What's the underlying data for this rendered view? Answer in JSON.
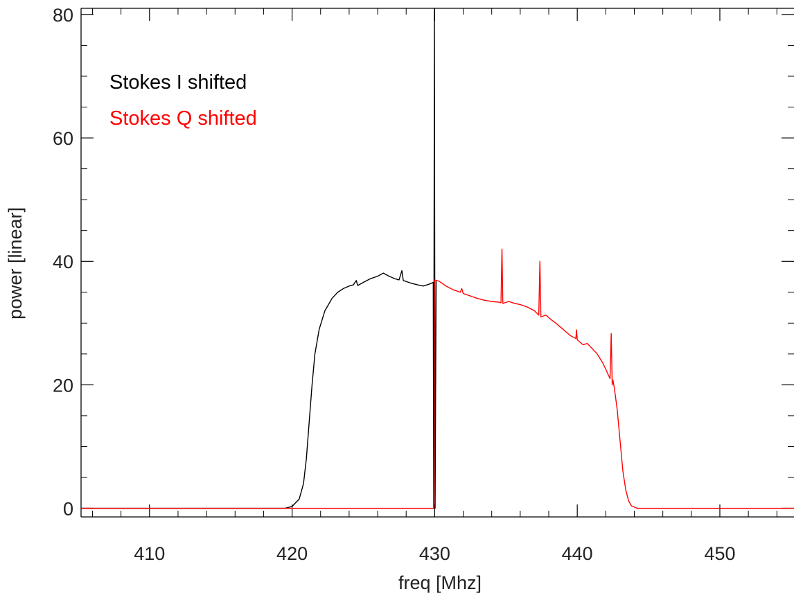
{
  "chart_data": {
    "type": "line",
    "title": "",
    "xlabel": "freq [Mhz]",
    "ylabel": "power [linear]",
    "xlim": [
      405.2,
      455.2
    ],
    "ylim": [
      -1.4,
      81.0
    ],
    "xticks": [
      "410",
      "420",
      "430",
      "440",
      "450"
    ],
    "yticks": [
      "0",
      "20",
      "40",
      "60",
      "80"
    ],
    "grid": false,
    "legend_position": "top-left",
    "series": [
      {
        "name": "Stokes I shifted",
        "color": "#000000",
        "points": [
          [
            405.2,
            0.0
          ],
          [
            419.5,
            0.0
          ],
          [
            420.0,
            0.3
          ],
          [
            420.5,
            1.5
          ],
          [
            420.8,
            4.0
          ],
          [
            421.0,
            8.0
          ],
          [
            421.2,
            14.0
          ],
          [
            421.4,
            20.0
          ],
          [
            421.6,
            25.0
          ],
          [
            421.9,
            29.0
          ],
          [
            422.3,
            32.0
          ],
          [
            422.8,
            34.0
          ],
          [
            423.2,
            35.0
          ],
          [
            423.6,
            35.6
          ],
          [
            424.0,
            36.0
          ],
          [
            424.3,
            36.2
          ],
          [
            424.5,
            36.9
          ],
          [
            424.6,
            36.1
          ],
          [
            425.0,
            36.6
          ],
          [
            425.5,
            37.2
          ],
          [
            426.0,
            37.6
          ],
          [
            426.4,
            38.1
          ],
          [
            426.8,
            37.6
          ],
          [
            427.2,
            37.2
          ],
          [
            427.5,
            37.0
          ],
          [
            427.7,
            38.5
          ],
          [
            427.8,
            36.9
          ],
          [
            428.3,
            36.5
          ],
          [
            428.8,
            36.2
          ],
          [
            429.2,
            36.0
          ],
          [
            429.6,
            36.3
          ],
          [
            429.9,
            36.6
          ],
          [
            429.93,
            0.0
          ],
          [
            429.98,
            81.0
          ],
          [
            430.03,
            0.0
          ],
          [
            430.1,
            36.8
          ]
        ]
      },
      {
        "name": "Stokes Q shifted",
        "color": "#ff0000",
        "points": [
          [
            405.2,
            0.0
          ],
          [
            429.95,
            0.0
          ],
          [
            429.98,
            37.0
          ],
          [
            430.3,
            36.8
          ],
          [
            430.8,
            36.0
          ],
          [
            431.3,
            35.4
          ],
          [
            431.8,
            35.0
          ],
          [
            431.9,
            35.6
          ],
          [
            432.0,
            34.8
          ],
          [
            432.5,
            34.4
          ],
          [
            433.0,
            34.0
          ],
          [
            433.5,
            33.7
          ],
          [
            434.0,
            33.5
          ],
          [
            434.5,
            33.4
          ],
          [
            434.65,
            33.3
          ],
          [
            434.72,
            42.0
          ],
          [
            434.78,
            33.2
          ],
          [
            435.2,
            33.5
          ],
          [
            435.6,
            33.2
          ],
          [
            436.0,
            33.0
          ],
          [
            436.5,
            32.6
          ],
          [
            437.0,
            32.0
          ],
          [
            437.3,
            31.3
          ],
          [
            437.38,
            40.0
          ],
          [
            437.45,
            31.0
          ],
          [
            437.8,
            31.3
          ],
          [
            438.2,
            30.5
          ],
          [
            438.6,
            29.8
          ],
          [
            439.0,
            29.0
          ],
          [
            439.5,
            28.0
          ],
          [
            439.9,
            27.5
          ],
          [
            439.95,
            28.9
          ],
          [
            440.0,
            27.3
          ],
          [
            440.4,
            26.5
          ],
          [
            440.7,
            26.7
          ],
          [
            441.0,
            26.0
          ],
          [
            441.4,
            25.0
          ],
          [
            441.8,
            23.5
          ],
          [
            442.2,
            21.5
          ],
          [
            442.3,
            21.0
          ],
          [
            442.38,
            28.3
          ],
          [
            442.45,
            20.0
          ],
          [
            442.5,
            20.8
          ],
          [
            442.6,
            19.5
          ],
          [
            442.8,
            16.0
          ],
          [
            443.0,
            11.0
          ],
          [
            443.2,
            6.0
          ],
          [
            443.4,
            3.0
          ],
          [
            443.6,
            1.2
          ],
          [
            443.8,
            0.4
          ],
          [
            444.2,
            0.0
          ],
          [
            455.2,
            0.0
          ]
        ]
      }
    ]
  }
}
